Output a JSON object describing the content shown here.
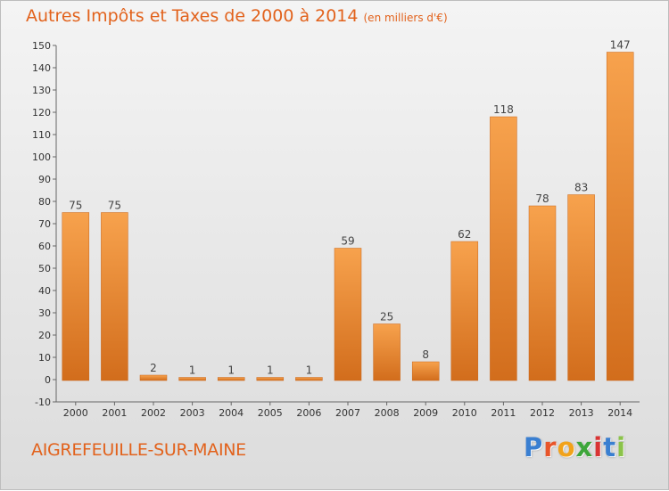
{
  "chart_data": {
    "type": "bar",
    "title": "Autres Impôts et Taxes de 2000 à 2014",
    "subtitle": "(en milliers d'€)",
    "xlabel": "",
    "ylabel": "",
    "categories": [
      "2000",
      "2001",
      "2002",
      "2003",
      "2004",
      "2005",
      "2006",
      "2007",
      "2008",
      "2009",
      "2010",
      "2011",
      "2012",
      "2013",
      "2014"
    ],
    "values": [
      75,
      75,
      2,
      1,
      1,
      1,
      1,
      59,
      25,
      8,
      62,
      118,
      78,
      83,
      147
    ],
    "ylim": [
      -10,
      150
    ],
    "yticks": [
      -10,
      0,
      10,
      20,
      30,
      40,
      50,
      60,
      70,
      80,
      90,
      100,
      110,
      120,
      130,
      140,
      150
    ],
    "grid": false,
    "bar_color": "#e98b33"
  },
  "footer": {
    "commune": "AIGREFEUILLE-SUR-MAINE",
    "brand_letters": [
      {
        "ch": "P",
        "color": "#3a7fd1"
      },
      {
        "ch": "r",
        "color": "#e8552a"
      },
      {
        "ch": "o",
        "color": "#f1a21b"
      },
      {
        "ch": "x",
        "color": "#3da63a"
      },
      {
        "ch": "i",
        "color": "#d93434"
      },
      {
        "ch": "t",
        "color": "#3a7fd1"
      },
      {
        "ch": "i",
        "color": "#8bc34a"
      }
    ]
  }
}
